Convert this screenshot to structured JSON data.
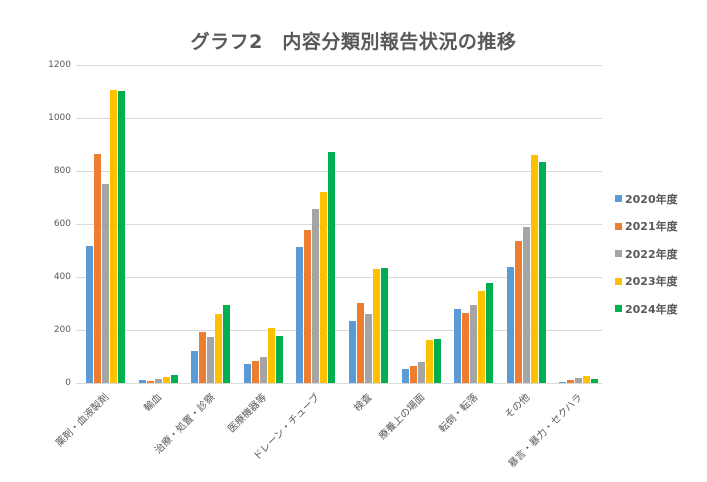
{
  "title": "グラフ2　内容分類別報告状況の推移",
  "colors": {
    "2020年度": "#5b9bd5",
    "2021年度": "#ed7d31",
    "2022年度": "#a5a5a5",
    "2023年度": "#ffc000",
    "2024年度": "#00b050"
  },
  "y_ticks": [
    "0",
    "200",
    "400",
    "600",
    "800",
    "1000",
    "1200"
  ],
  "legend": [
    "2020年度",
    "2021年度",
    "2022年度",
    "2023年度",
    "2024年度"
  ],
  "chart_data": {
    "type": "bar",
    "title": "グラフ2　内容分類別報告状況の推移",
    "xlabel": "",
    "ylabel": "",
    "ylim": [
      0,
      1200
    ],
    "y_ticks": [
      0,
      200,
      400,
      600,
      800,
      1000,
      1200
    ],
    "grid": true,
    "legend_position": "right",
    "categories": [
      "薬剤・血液製剤",
      "輸血",
      "治療・処置・診察",
      "医療機器等",
      "ドレーン・チューブ",
      "検査",
      "療養上の場面",
      "転倒・転落",
      "その他",
      "暴言・暴力・セクハラ"
    ],
    "series": [
      {
        "name": "2020年度",
        "color": "#5b9bd5",
        "values": [
          517,
          11,
          121,
          72,
          513,
          234,
          53,
          279,
          438,
          4
        ]
      },
      {
        "name": "2021年度",
        "color": "#ed7d31",
        "values": [
          864,
          9,
          192,
          83,
          577,
          302,
          64,
          264,
          536,
          11
        ]
      },
      {
        "name": "2022年度",
        "color": "#a5a5a5",
        "values": [
          751,
          15,
          174,
          98,
          657,
          260,
          79,
          294,
          589,
          19
        ]
      },
      {
        "name": "2023年度",
        "color": "#ffc000",
        "values": [
          1106,
          23,
          260,
          208,
          721,
          430,
          162,
          347,
          860,
          26
        ]
      },
      {
        "name": "2024年度",
        "color": "#00b050",
        "values": [
          1102,
          30,
          294,
          177,
          872,
          434,
          166,
          377,
          834,
          15
        ]
      }
    ]
  }
}
